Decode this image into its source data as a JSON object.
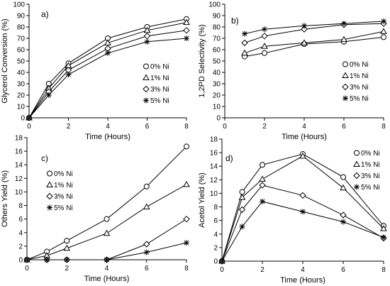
{
  "chart_data": [
    {
      "type": "line",
      "panel_label": "a)",
      "xlabel": "Time (Hours)",
      "ylabel": "Glycerol Conversion (%)",
      "xlim": [
        0,
        8
      ],
      "ylim": [
        0,
        100
      ],
      "xticks": [
        0,
        2,
        4,
        6,
        8
      ],
      "yticks": [
        0,
        10,
        20,
        30,
        40,
        50,
        60,
        70,
        80,
        90,
        100
      ],
      "legend_position": "right",
      "series": [
        {
          "name": "0% Ni",
          "marker": "circle",
          "x": [
            0,
            1,
            2,
            4,
            6,
            8
          ],
          "values": [
            0,
            30,
            48,
            70,
            80,
            87
          ]
        },
        {
          "name": "1% Ni",
          "marker": "triangle",
          "x": [
            0,
            1,
            2,
            4,
            6,
            8
          ],
          "values": [
            0,
            26,
            46,
            66,
            77,
            84
          ]
        },
        {
          "name": "3% Ni",
          "marker": "diamond",
          "x": [
            0,
            1,
            2,
            4,
            6,
            8
          ],
          "values": [
            0,
            23,
            42,
            61,
            72,
            77
          ]
        },
        {
          "name": "5% Ni",
          "marker": "asterisk",
          "x": [
            0,
            1,
            2,
            4,
            6,
            8
          ],
          "values": [
            0,
            20,
            38,
            57,
            67,
            70
          ]
        }
      ]
    },
    {
      "type": "line",
      "panel_label": "b)",
      "xlabel": "Time (Hours)",
      "ylabel": "1,2PD Selectivity (%)",
      "xlim": [
        0,
        8
      ],
      "ylim": [
        0,
        100
      ],
      "xticks": [
        0,
        2,
        4,
        6,
        8
      ],
      "yticks": [
        0,
        10,
        20,
        30,
        40,
        50,
        60,
        70,
        80,
        90,
        100
      ],
      "legend_position": "bottom-right",
      "series": [
        {
          "name": "0% Ni",
          "marker": "circle",
          "x": [
            1,
            2,
            4,
            6,
            8
          ],
          "values": [
            54,
            57,
            65,
            67,
            71
          ]
        },
        {
          "name": "1% Ni",
          "marker": "triangle",
          "x": [
            1,
            2,
            4,
            6,
            8
          ],
          "values": [
            57,
            63,
            66,
            69,
            76
          ]
        },
        {
          "name": "3% Ni",
          "marker": "diamond",
          "x": [
            1,
            2,
            4,
            6,
            8
          ],
          "values": [
            66,
            72,
            78,
            82,
            83
          ]
        },
        {
          "name": "5% Ni",
          "marker": "asterisk",
          "x": [
            1,
            2,
            4,
            6,
            8
          ],
          "values": [
            74,
            78,
            81,
            83,
            85
          ]
        }
      ]
    },
    {
      "type": "line",
      "panel_label": "c)",
      "xlabel": "Time (Hours)",
      "ylabel": "Others Yield (%)",
      "xlim": [
        0,
        8
      ],
      "ylim": [
        0,
        18
      ],
      "xticks": [
        0,
        2,
        4,
        6,
        8
      ],
      "yticks": [
        0,
        2,
        4,
        6,
        8,
        10,
        12,
        14,
        16,
        18
      ],
      "legend_position": "top-left",
      "series": [
        {
          "name": "0% Ni",
          "marker": "circle",
          "x": [
            0,
            1,
            2,
            4,
            6,
            8
          ],
          "values": [
            0,
            1.2,
            2.8,
            6.0,
            10.8,
            16.7
          ]
        },
        {
          "name": "1% Ni",
          "marker": "triangle",
          "x": [
            0,
            1,
            2,
            4,
            6,
            8
          ],
          "values": [
            0,
            0.6,
            1.7,
            3.9,
            7.8,
            11.1
          ]
        },
        {
          "name": "3% Ni",
          "marker": "diamond",
          "x": [
            0,
            1,
            2,
            4,
            6,
            8
          ],
          "values": [
            0,
            0,
            0,
            0,
            2.3,
            6.0
          ]
        },
        {
          "name": "5% Ni",
          "marker": "asterisk",
          "x": [
            0,
            1,
            2,
            4,
            6,
            8
          ],
          "values": [
            0,
            0,
            0,
            0,
            1.1,
            2.5
          ]
        }
      ]
    },
    {
      "type": "line",
      "panel_label": "d)",
      "xlabel": "Time (Hours)",
      "ylabel": "Acetol Yield (%)",
      "xlim": [
        0,
        8
      ],
      "ylim": [
        0,
        18
      ],
      "xticks": [
        0,
        2,
        4,
        6,
        8
      ],
      "yticks": [
        0,
        2,
        4,
        6,
        8,
        10,
        12,
        14,
        16,
        18
      ],
      "legend_position": "top-right",
      "series": [
        {
          "name": "0% Ni",
          "marker": "circle",
          "x": [
            0,
            1,
            2,
            4,
            6,
            8
          ],
          "values": [
            0,
            10.2,
            14.2,
            15.8,
            12.4,
            5.2
          ]
        },
        {
          "name": "1% Ni",
          "marker": "triangle",
          "x": [
            0,
            1,
            2,
            4,
            6,
            8
          ],
          "values": [
            0,
            9.4,
            12.1,
            15.5,
            10.8,
            4.8
          ]
        },
        {
          "name": "3% Ni",
          "marker": "diamond",
          "x": [
            0,
            1,
            2,
            4,
            6,
            8
          ],
          "values": [
            0,
            7.6,
            11.2,
            9.7,
            6.8,
            3.4
          ]
        },
        {
          "name": "5% Ni",
          "marker": "asterisk",
          "x": [
            0,
            1,
            2,
            4,
            6,
            8
          ],
          "values": [
            0,
            5.1,
            8.8,
            7.3,
            5.8,
            3.5
          ]
        }
      ]
    }
  ]
}
